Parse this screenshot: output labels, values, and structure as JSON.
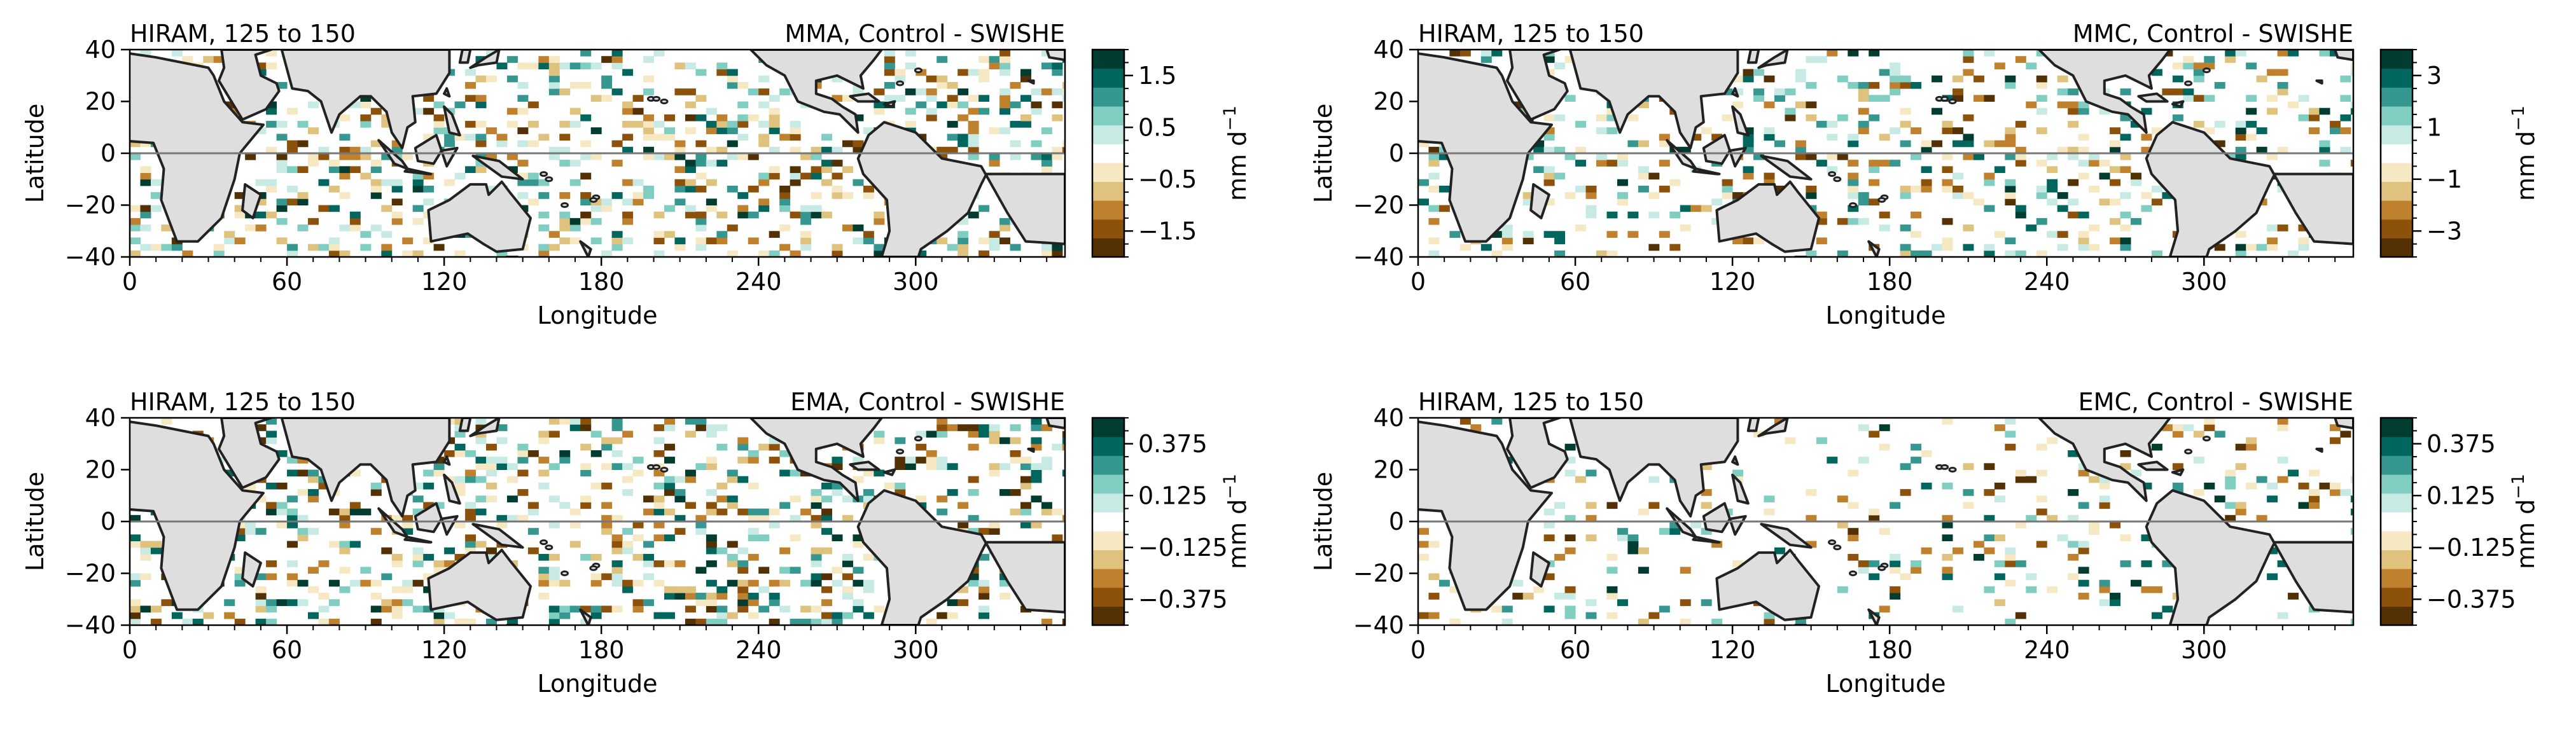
{
  "colors": {
    "land": "#dedede",
    "coast": "#222222",
    "equator": "#777777",
    "brbg": [
      "#543005",
      "#8c510a",
      "#bf812d",
      "#dfc27d",
      "#f6e8c3",
      "#ffffff",
      "#c7eae5",
      "#80cdc1",
      "#35978f",
      "#01665e",
      "#003c30"
    ]
  },
  "chart_data": [
    {
      "type": "heatmap",
      "title_left": "HIRAM, 125 to 150",
      "title_right": "MMA, Control - SWISHE",
      "xlabel": "Longitude",
      "ylabel": "Latitude",
      "xlim": [
        0,
        357
      ],
      "ylim": [
        -40,
        40
      ],
      "xticks": [
        "0",
        "60",
        "120",
        "180",
        "240",
        "300"
      ],
      "yticks": [
        "40",
        "20",
        "0",
        "−20",
        "−40"
      ],
      "equator_line": 0,
      "colorbar": {
        "label": "mm d",
        "label_sup": "−1",
        "range": [
          -2,
          2
        ],
        "ticks": [
          "1.5",
          "0.5",
          "−0.5",
          "−1.5"
        ]
      },
      "pattern_seed": 11,
      "anomaly_density": 0.32
    },
    {
      "type": "heatmap",
      "title_left": "HIRAM, 125 to 150",
      "title_right": "MMC, Control - SWISHE",
      "xlabel": "Longitude",
      "ylabel": "Latitude",
      "xlim": [
        0,
        357
      ],
      "ylim": [
        -40,
        40
      ],
      "xticks": [
        "0",
        "60",
        "120",
        "180",
        "240",
        "300"
      ],
      "yticks": [
        "40",
        "20",
        "0",
        "−20",
        "−40"
      ],
      "equator_line": 0,
      "colorbar": {
        "label": "mm d",
        "label_sup": "−1",
        "range": [
          -4,
          4
        ],
        "ticks": [
          "3",
          "1",
          "−1",
          "−3"
        ]
      },
      "pattern_seed": 23,
      "anomaly_density": 0.22
    },
    {
      "type": "heatmap",
      "title_left": "HIRAM, 125 to 150",
      "title_right": "EMA, Control - SWISHE",
      "xlabel": "Longitude",
      "ylabel": "Latitude",
      "xlim": [
        0,
        357
      ],
      "ylim": [
        -40,
        40
      ],
      "xticks": [
        "0",
        "60",
        "120",
        "180",
        "240",
        "300"
      ],
      "yticks": [
        "40",
        "20",
        "0",
        "−20",
        "−40"
      ],
      "equator_line": 0,
      "colorbar": {
        "label": "mm d",
        "label_sup": "−1",
        "range": [
          -0.5,
          0.5
        ],
        "ticks": [
          "0.375",
          "0.125",
          "−0.125",
          "−0.375"
        ]
      },
      "pattern_seed": 37,
      "anomaly_density": 0.3
    },
    {
      "type": "heatmap",
      "title_left": "HIRAM, 125 to 150",
      "title_right": "EMC, Control - SWISHE",
      "xlabel": "Longitude",
      "ylabel": "Latitude",
      "xlim": [
        0,
        357
      ],
      "ylim": [
        -40,
        40
      ],
      "xticks": [
        "0",
        "60",
        "120",
        "180",
        "240",
        "300"
      ],
      "yticks": [
        "40",
        "20",
        "0",
        "−20",
        "−40"
      ],
      "equator_line": 0,
      "colorbar": {
        "label": "mm d",
        "label_sup": "−1",
        "range": [
          -0.5,
          0.5
        ],
        "ticks": [
          "0.375",
          "0.125",
          "−0.125",
          "−0.375"
        ]
      },
      "pattern_seed": 53,
      "anomaly_density": 0.13
    }
  ]
}
